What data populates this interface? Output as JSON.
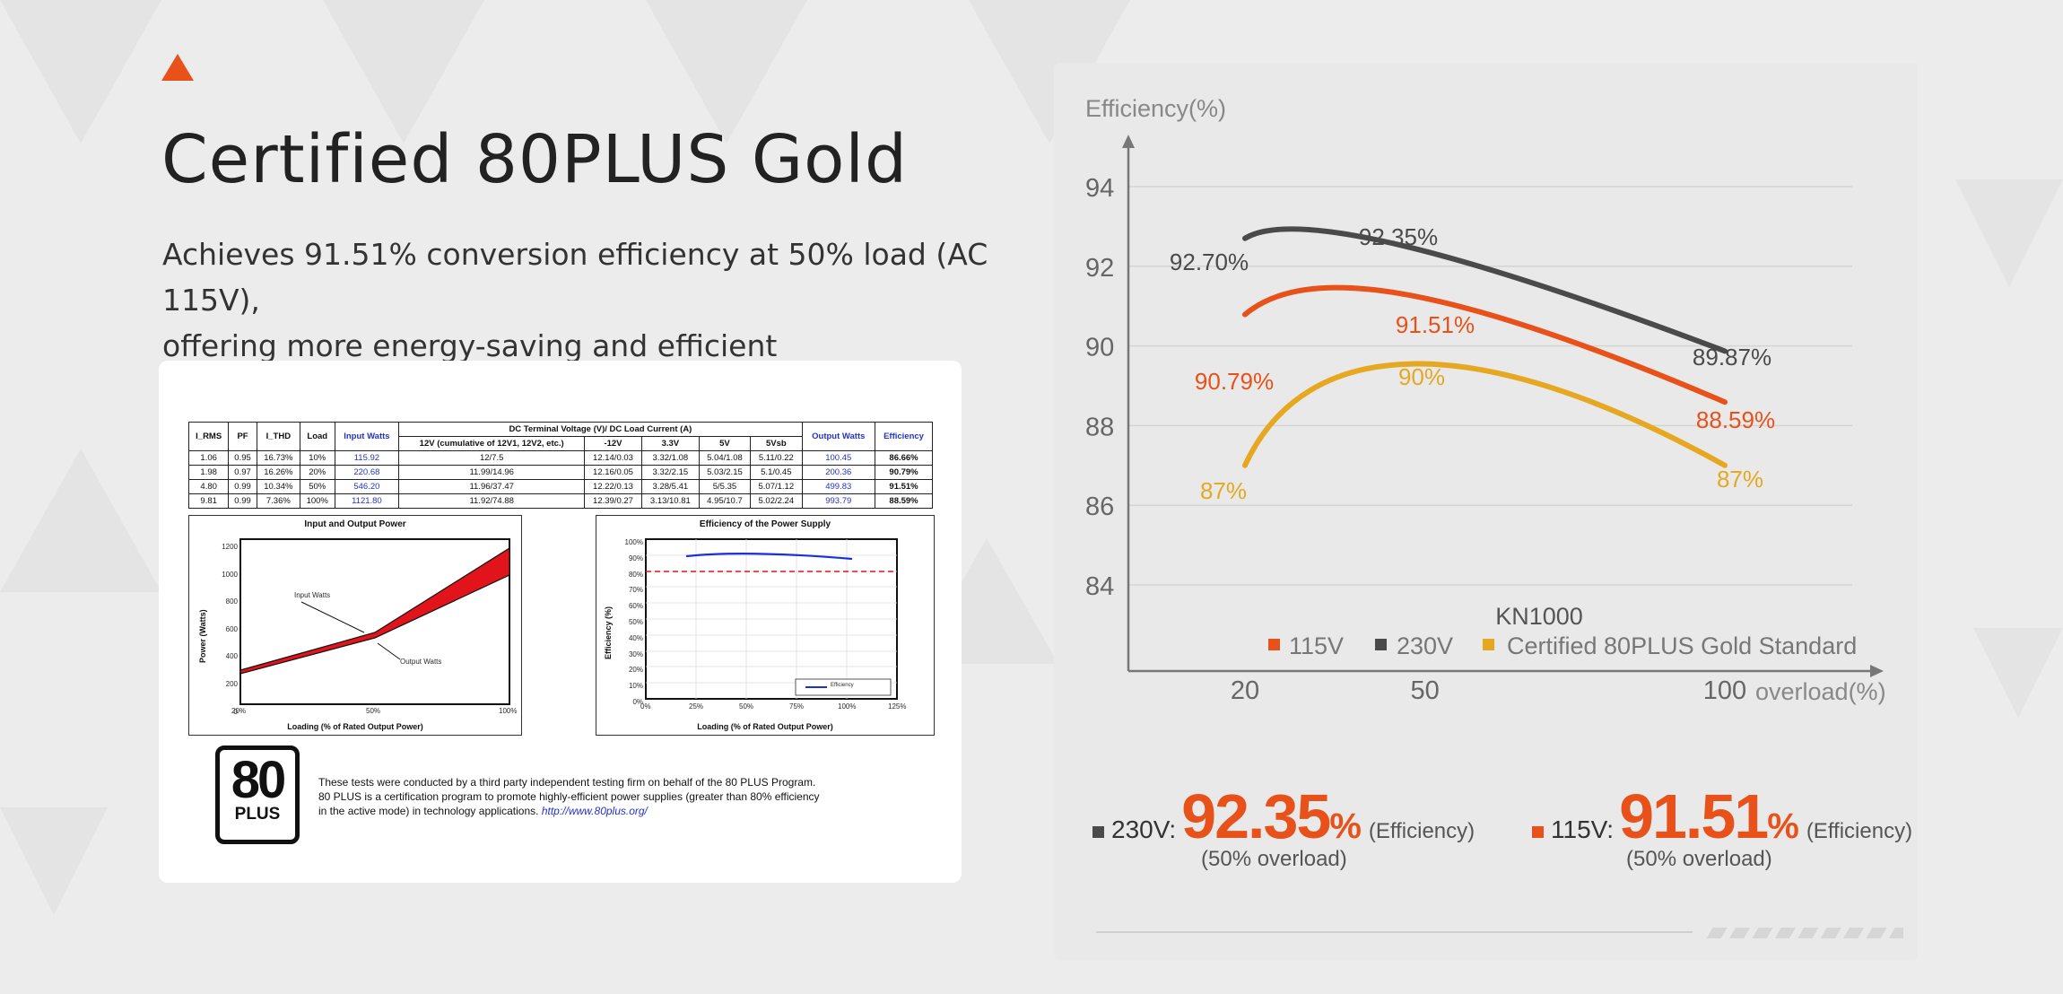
{
  "header": {
    "title": "Certified 80PLUS Gold",
    "subtitle_line1": "Achieves 91.51% conversion efficiency at 50% load (AC 115V),",
    "subtitle_line2": "offering more energy-saving and efficient"
  },
  "report": {
    "table": {
      "headers": [
        "I_RMS",
        "PF",
        "I_THD",
        "Load",
        "Input Watts",
        "DC Terminal Voltage (V)/ DC Load Current (A)",
        "Output Watts",
        "Efficiency"
      ],
      "subheaders": [
        "12V (cumulative of 12V1, 12V2, etc.)",
        "-12V",
        "3.3V",
        "5V",
        "5Vsb"
      ],
      "rows": [
        [
          "1.06",
          "0.95",
          "16.73%",
          "10%",
          "115.92",
          "12/7.5",
          "12.14/0.03",
          "3.32/1.08",
          "5.04/1.08",
          "5.11/0.22",
          "100.45",
          "86.66%"
        ],
        [
          "1.98",
          "0.97",
          "16.26%",
          "20%",
          "220.68",
          "11.99/14.96",
          "12.16/0.05",
          "3.32/2.15",
          "5.03/2.15",
          "5.1/0.45",
          "200.36",
          "90.79%"
        ],
        [
          "4.80",
          "0.99",
          "10.34%",
          "50%",
          "546.20",
          "11.96/37.47",
          "12.22/0.13",
          "3.28/5.41",
          "5/5.35",
          "5.07/1.12",
          "499.83",
          "91.51%"
        ],
        [
          "9.81",
          "0.99",
          "7.36%",
          "100%",
          "1121.80",
          "11.92/74.88",
          "12.39/0.27",
          "3.13/10.81",
          "4.95/10.7",
          "5.02/2.24",
          "993.79",
          "88.59%"
        ]
      ]
    },
    "power_chart": {
      "title": "Input and Output Power",
      "xlabel": "Loading (% of Rated Output Power)",
      "ylabel": "Power (Watts)",
      "yticks": [
        "1200",
        "1000",
        "800",
        "600",
        "400",
        "200",
        "0"
      ],
      "xticks": [
        "20%",
        "50%",
        "100%"
      ],
      "label_input": "Input Watts",
      "label_output": "Output Watts"
    },
    "eff_chart": {
      "title": "Efficiency of the Power Supply",
      "xlabel": "Loading (% of Rated Output Power)",
      "ylabel": "Efficiency (%)",
      "yticks": [
        "100%",
        "90%",
        "80%",
        "70%",
        "60%",
        "50%",
        "40%",
        "30%",
        "20%",
        "10%",
        "0%"
      ],
      "xticks": [
        "0%",
        "25%",
        "50%",
        "75%",
        "100%",
        "125%"
      ],
      "legend": "Efficiency"
    },
    "logo_number": "80",
    "logo_text": "PLUS",
    "note_text": "These tests were conducted by a third party independent testing firm on behalf of the 80 PLUS Program. 80 PLUS is a certification program to promote highly-efficient power supplies (greater than 80% efficiency in the active mode) in technology applications.",
    "note_link": "http://www.80plus.org/"
  },
  "chart_data": {
    "type": "line",
    "ylabel": "Efficiency(%)",
    "xlabel": "overload(%)",
    "yticks": [
      94,
      92,
      90,
      88,
      86,
      84
    ],
    "xticks": [
      20,
      50,
      100
    ],
    "ylim": [
      82,
      96
    ],
    "xlim": [
      0,
      110
    ],
    "grid": true,
    "legend_title": "KN1000",
    "legend_position": "bottom-right",
    "series": [
      {
        "name": "115V",
        "color": "#e8521a",
        "points": [
          [
            20,
            90.79
          ],
          [
            50,
            91.51
          ],
          [
            100,
            88.59
          ]
        ],
        "labels": [
          "90.79%",
          "91.51%",
          "88.59%"
        ]
      },
      {
        "name": "230V",
        "color": "#4a4a4a",
        "points": [
          [
            20,
            92.7
          ],
          [
            50,
            92.35
          ],
          [
            100,
            89.87
          ]
        ],
        "labels": [
          "92.70%",
          "92.35%",
          "89.87%"
        ]
      },
      {
        "name": "Certified 80PLUS Gold Standard",
        "color": "#e5a820",
        "points": [
          [
            20,
            87
          ],
          [
            50,
            90
          ],
          [
            100,
            87
          ]
        ],
        "labels": [
          "87%",
          "90%",
          "87%"
        ]
      }
    ]
  },
  "stats": [
    {
      "color": "#4a4a4a",
      "label": "230V:",
      "value": "92.35",
      "unit": "%",
      "tag": "(Efficiency)",
      "sub": "(50% overload)"
    },
    {
      "color": "#e8521a",
      "label": "115V:",
      "value": "91.51",
      "unit": "%",
      "tag": "(Efficiency)",
      "sub": "(50% overload)"
    }
  ]
}
